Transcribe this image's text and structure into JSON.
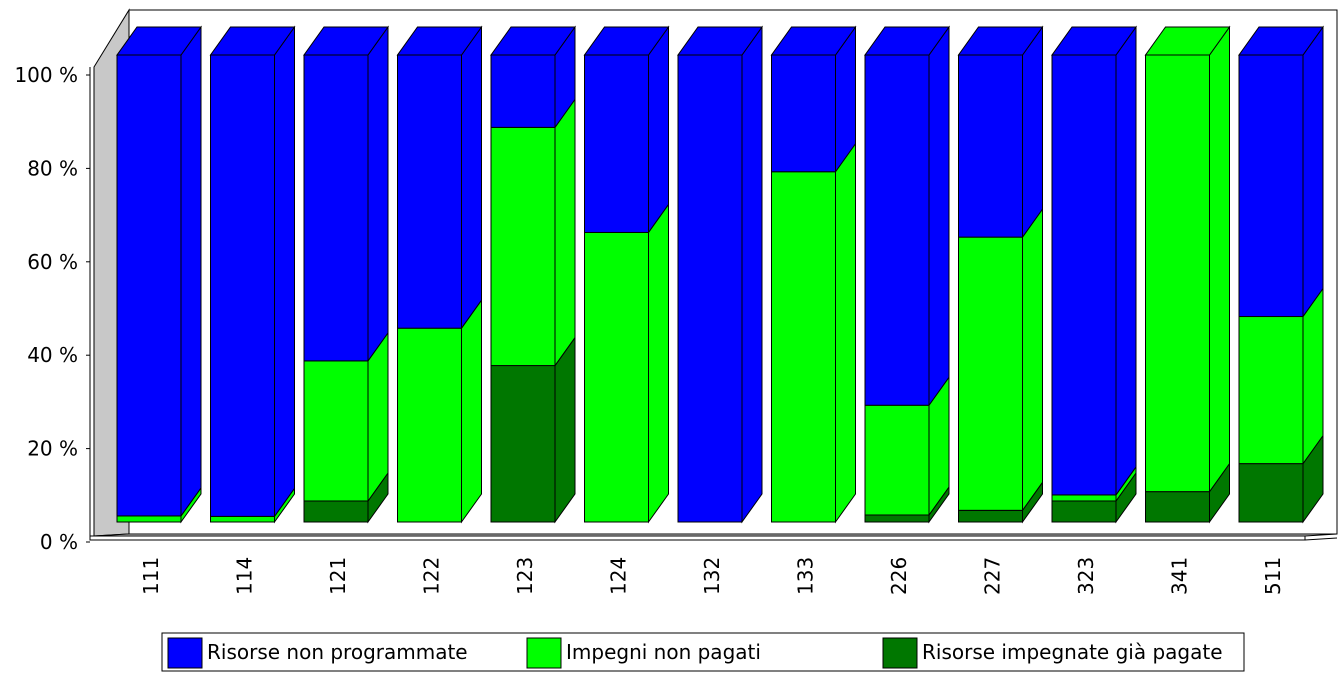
{
  "chart_data": {
    "type": "bar",
    "stacked": true,
    "percent": true,
    "three_d": true,
    "categories": [
      "111",
      "114",
      "121",
      "122",
      "123",
      "124",
      "132",
      "133",
      "226",
      "227",
      "323",
      "341",
      "511"
    ],
    "series": [
      {
        "name": "Risorse impegnate già pagate",
        "color": "#007700",
        "values": [
          0,
          0,
          4.5,
          0,
          33.5,
          0,
          0,
          0,
          1.5,
          2.5,
          4.5,
          6.5,
          12.5
        ]
      },
      {
        "name": "Impegni non pagati",
        "color": "#00ff00",
        "values": [
          1.3,
          1.2,
          30,
          41.5,
          51,
          62,
          0,
          75,
          23.5,
          58.5,
          1.3,
          93.5,
          31.5
        ]
      },
      {
        "name": "Risorse non programmate",
        "color": "#0000ff",
        "values": [
          98.7,
          98.8,
          65.5,
          58.5,
          15.5,
          38,
          100,
          25,
          75,
          39,
          94.2,
          0,
          56
        ]
      }
    ],
    "y_ticks": [
      "0 %",
      "20 %",
      "40 %",
      "60 %",
      "80 %",
      "100 %"
    ],
    "ylim": [
      0,
      100
    ],
    "legend_position": "bottom",
    "legend_order": [
      "Risorse non programmate",
      "Impegni non pagati",
      "Risorse impegnate già pagate"
    ]
  }
}
